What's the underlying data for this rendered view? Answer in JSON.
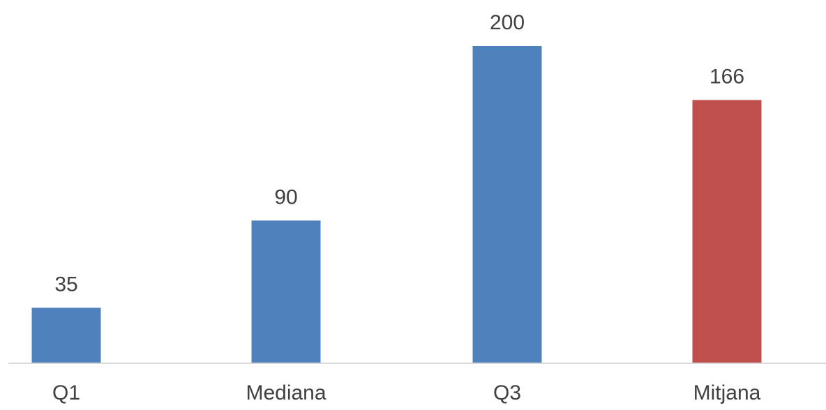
{
  "chart_data": {
    "type": "bar",
    "categories": [
      "Q1",
      "Mediana",
      "Q3",
      "Mitjana"
    ],
    "values": [
      35,
      90,
      200,
      166
    ],
    "colors": [
      "#4f81bd",
      "#4f81bd",
      "#4f81bd",
      "#c0504d"
    ],
    "data_labels": [
      "35",
      "90",
      "200",
      "166"
    ],
    "title": "",
    "xlabel": "",
    "ylabel": "",
    "ylim": [
      0,
      200
    ],
    "grid": false,
    "legend": "none",
    "axis_line_color": "#d9d9d9"
  }
}
